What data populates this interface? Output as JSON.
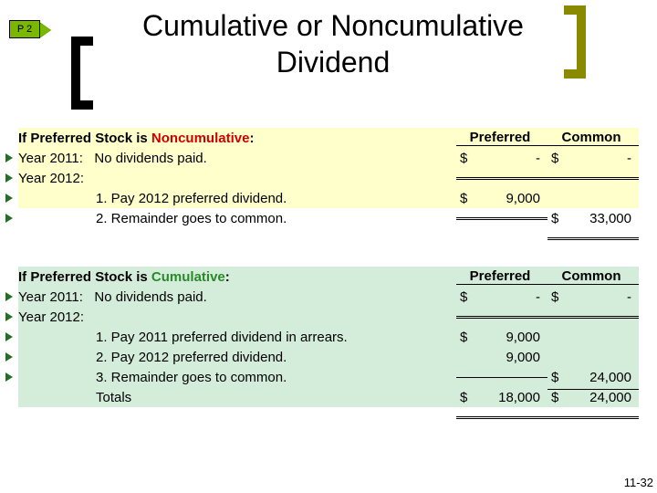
{
  "badge": "P 2",
  "title": "Cumulative or Noncumulative Dividend",
  "colHeaders": {
    "preferred": "Preferred",
    "common": "Common"
  },
  "noncum": {
    "heading_pre": "If Preferred Stock is ",
    "heading_key": "Noncumulative",
    "heading_post": ":",
    "year1_label": "Year 2011:   No dividends paid.",
    "year1_pref_cur": "$",
    "year1_pref_amt": "-",
    "year1_comm_cur": "$",
    "year1_comm_amt": "-",
    "year2_label": "Year 2012:",
    "step1": "1. Pay 2012 preferred dividend.",
    "step1_pref_cur": "$",
    "step1_pref_amt": "9,000",
    "step2": "2. Remainder goes to common.",
    "step2_comm_cur": "$",
    "step2_comm_amt": "33,000"
  },
  "cum": {
    "heading_pre": "If Preferred Stock is ",
    "heading_key": "Cumulative",
    "heading_post": ":",
    "year1_label": "Year 2011:   No dividends paid.",
    "year1_pref_cur": "$",
    "year1_pref_amt": "-",
    "year1_comm_cur": "$",
    "year1_comm_amt": "-",
    "year2_label": "Year 2012:",
    "step1": "1. Pay 2011 preferred dividend in arrears.",
    "step1_pref_cur": "$",
    "step1_pref_amt": "9,000",
    "step2": "2. Pay 2012 preferred dividend.",
    "step2_pref_amt": "9,000",
    "step3": "3. Remainder goes to common.",
    "step3_comm_cur": "$",
    "step3_comm_amt": "24,000",
    "totals_label": "Totals",
    "totals_pref_cur": "$",
    "totals_pref_amt": "18,000",
    "totals_comm_cur": "$",
    "totals_comm_amt": "24,000"
  },
  "slideNumber": "11-32",
  "colors": {
    "badge_bg": "#7ab800",
    "noncum_bg": "#ffffcc",
    "cum_bg": "#d4edda",
    "noncum_word": "#cc0000",
    "cum_word": "#2a8a2a",
    "bracket_right": "#8a8a00"
  }
}
